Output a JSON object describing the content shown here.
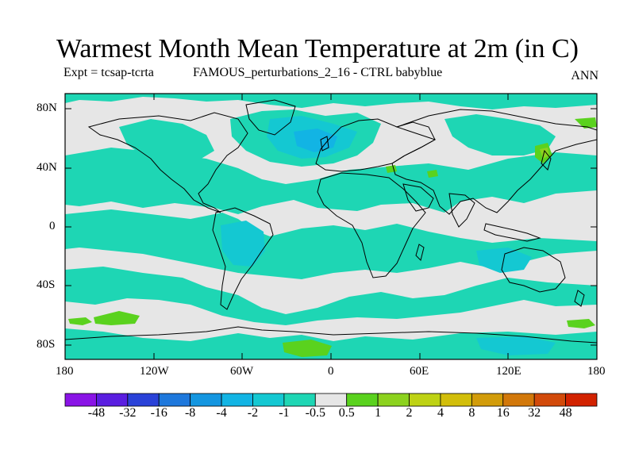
{
  "title": "Warmest Month Mean Temperature at 2m (in C)",
  "subtitle_left": "Expt = tcsap-tcrta",
  "subtitle_center": "FAMOUS_perturbations_2_16 - CTRL babyblue",
  "subtitle_right": "ANN",
  "lat_labels": [
    "80N",
    "40N",
    "0",
    "40S",
    "80S"
  ],
  "lon_labels": [
    "180",
    "120W",
    "60W",
    "0",
    "60E",
    "120E",
    "180"
  ],
  "colorbar": {
    "labels": [
      "-48",
      "-32",
      "-16",
      "-8",
      "-4",
      "-2",
      "-1",
      "-0.5",
      "0.5",
      "1",
      "2",
      "4",
      "8",
      "16",
      "32",
      "48"
    ],
    "colors": [
      "#8a14e6",
      "#5a1ee0",
      "#2a42d8",
      "#1e78dc",
      "#1496e0",
      "#12b4e4",
      "#14c8d2",
      "#1ed6b4",
      "#e6e6e6",
      "#5ad21e",
      "#8cd21e",
      "#bed214",
      "#d2be0a",
      "#d29c0a",
      "#d2780a",
      "#d24a0a",
      "#d22200"
    ]
  },
  "map_colors": {
    "background": "#e6e6e6",
    "teal": "#1ed6b4",
    "cyan": "#14c8d2",
    "light_blue": "#12b4e4",
    "green": "#5ad21e",
    "lime": "#8cd21e"
  }
}
